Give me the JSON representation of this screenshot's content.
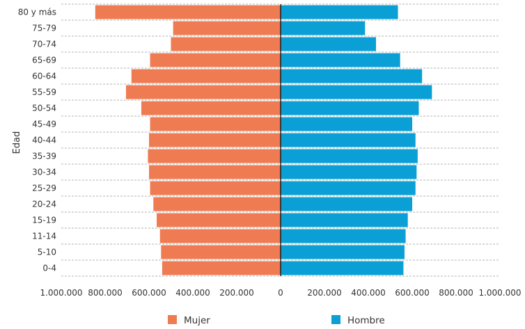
{
  "chart_data": {
    "type": "bar",
    "orientation": "horizontal",
    "layout": "population-pyramid",
    "categories": [
      "0-4",
      "5-10",
      "11-14",
      "15-19",
      "20-24",
      "25-29",
      "30-34",
      "35-39",
      "40-44",
      "45-49",
      "50-54",
      "55-59",
      "60-64",
      "65-69",
      "70-74",
      "75-79",
      "80 y más"
    ],
    "series": [
      {
        "name": "Mujer",
        "side": "left",
        "color": "#ef7b53",
        "values": [
          540000,
          545000,
          550000,
          565000,
          580000,
          595000,
          600000,
          605000,
          600000,
          595000,
          635000,
          705000,
          680000,
          595000,
          500000,
          490000,
          845000
        ]
      },
      {
        "name": "Hombre",
        "side": "right",
        "color": "#0aa0d6",
        "values": [
          560000,
          565000,
          570000,
          580000,
          600000,
          615000,
          620000,
          625000,
          615000,
          600000,
          630000,
          690000,
          645000,
          545000,
          435000,
          385000,
          535000
        ]
      }
    ],
    "xlim": [
      -1000000,
      1000000
    ],
    "xticks": [
      "1.000.000",
      "800.000",
      "600.000",
      "400.000",
      "200.000",
      "0",
      "200.000",
      "400.000",
      "600.000",
      "800.000",
      "1.000.000"
    ],
    "ylabel": "Edad",
    "xlabel": "",
    "title": "",
    "grid": "horizontal dashed",
    "legend_position": "bottom"
  }
}
